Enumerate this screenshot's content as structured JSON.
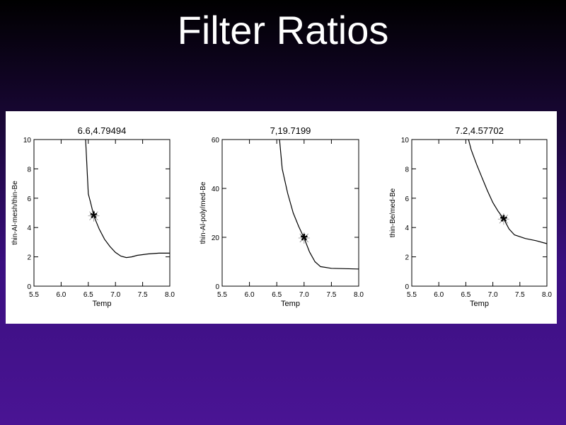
{
  "slide": {
    "title": "Filter Ratios"
  },
  "chart_data": [
    {
      "type": "line",
      "title": "6.6,4.79494",
      "xlabel": "Temp",
      "ylabel": "thin-Al-mesh/thin-Be",
      "xlim": [
        5.5,
        8.0
      ],
      "ylim": [
        0,
        10
      ],
      "xticks": [
        "5.5",
        "6.0",
        "6.5",
        "7.0",
        "7.5",
        "8.0"
      ],
      "yticks": [
        "0",
        "2",
        "4",
        "6",
        "8",
        "10"
      ],
      "series": [
        {
          "x": [
            6.45,
            6.5,
            6.55,
            6.6,
            6.7,
            6.8,
            6.9,
            7.0,
            7.1,
            7.2,
            7.3,
            7.4,
            7.6,
            7.8,
            8.0
          ],
          "y": [
            10.0,
            6.3,
            5.6,
            4.8,
            3.9,
            3.2,
            2.7,
            2.3,
            2.05,
            1.95,
            2.0,
            2.1,
            2.2,
            2.25,
            2.25
          ]
        }
      ],
      "marker": {
        "x": 6.6,
        "y": 4.79494,
        "symbol": "*"
      }
    },
    {
      "type": "line",
      "title": "7,19.7199",
      "xlabel": "Temp",
      "ylabel": "thin-Al-poly/med-Be",
      "xlim": [
        5.5,
        8.0
      ],
      "ylim": [
        0,
        60
      ],
      "xticks": [
        "5.5",
        "6.0",
        "6.5",
        "7.0",
        "7.5",
        "8.0"
      ],
      "yticks": [
        "0",
        "20",
        "40",
        "60"
      ],
      "series": [
        {
          "x": [
            6.55,
            6.6,
            6.7,
            6.8,
            6.9,
            7.0,
            7.1,
            7.2,
            7.3,
            7.5,
            7.7,
            8.0
          ],
          "y": [
            60.0,
            48.0,
            38.0,
            30.0,
            24.5,
            19.7,
            14.0,
            10.0,
            8.0,
            7.3,
            7.2,
            7.0
          ]
        }
      ],
      "marker": {
        "x": 7.0,
        "y": 19.7199,
        "symbol": "*"
      }
    },
    {
      "type": "line",
      "title": "7.2,4.57702",
      "xlabel": "Temp",
      "ylabel": "thin-Be/med-Be",
      "xlim": [
        5.5,
        8.0
      ],
      "ylim": [
        0,
        10
      ],
      "xticks": [
        "5.5",
        "6.0",
        "6.5",
        "7.0",
        "7.5",
        "8.0"
      ],
      "yticks": [
        "0",
        "2",
        "4",
        "6",
        "8",
        "10"
      ],
      "series": [
        {
          "x": [
            6.55,
            6.6,
            6.7,
            6.8,
            6.9,
            7.0,
            7.1,
            7.2,
            7.3,
            7.4,
            7.6,
            7.8,
            8.0
          ],
          "y": [
            10.0,
            9.3,
            8.3,
            7.4,
            6.5,
            5.7,
            5.1,
            4.6,
            3.9,
            3.5,
            3.25,
            3.1,
            2.9
          ]
        }
      ],
      "marker": {
        "x": 7.2,
        "y": 4.57702,
        "symbol": "*"
      }
    }
  ]
}
